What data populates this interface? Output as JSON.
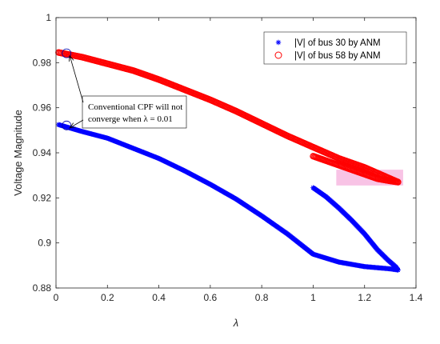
{
  "chart_data": {
    "type": "scatter",
    "xlabel": "λ",
    "ylabel": "Voltage Magnitude",
    "xlim": [
      0,
      1.4
    ],
    "ylim": [
      0.88,
      1.0
    ],
    "xticks": [
      "0",
      "0.2",
      "0.4",
      "0.6",
      "0.8",
      "1",
      "1.2",
      "1.4"
    ],
    "yticks": [
      "0.88",
      "0.9",
      "0.92",
      "0.94",
      "0.96",
      "0.98",
      "1"
    ],
    "legend_position": "top-right",
    "grid": false,
    "series": [
      {
        "name": "|V| of bus 30 by ANM",
        "marker": "asterisk",
        "color": "#0000ff",
        "segments": [
          [
            [
              0.01,
              0.9525
            ],
            [
              0.1,
              0.9495
            ],
            [
              0.2,
              0.9465
            ],
            [
              0.3,
              0.942
            ],
            [
              0.4,
              0.9375
            ],
            [
              0.5,
              0.932
            ],
            [
              0.6,
              0.926
            ],
            [
              0.7,
              0.9195
            ],
            [
              0.8,
              0.912
            ],
            [
              0.9,
              0.904
            ],
            [
              1.0,
              0.895
            ],
            [
              1.1,
              0.8915
            ],
            [
              1.2,
              0.8895
            ],
            [
              1.3,
              0.8885
            ],
            [
              1.33,
              0.888
            ]
          ],
          [
            [
              1.0,
              0.9245
            ],
            [
              1.05,
              0.9205
            ],
            [
              1.1,
              0.9155
            ],
            [
              1.15,
              0.91
            ],
            [
              1.2,
              0.904
            ],
            [
              1.25,
              0.897
            ],
            [
              1.29,
              0.8925
            ],
            [
              1.32,
              0.8895
            ],
            [
              1.33,
              0.888
            ]
          ]
        ]
      },
      {
        "name": "|V| of bus 58 by ANM",
        "marker": "circle",
        "color": "#ff0000",
        "segments": [
          [
            [
              0.01,
              0.9845
            ],
            [
              0.1,
              0.9825
            ],
            [
              0.2,
              0.9795
            ],
            [
              0.3,
              0.9765
            ],
            [
              0.4,
              0.9725
            ],
            [
              0.5,
              0.968
            ],
            [
              0.6,
              0.9635
            ],
            [
              0.7,
              0.9585
            ],
            [
              0.8,
              0.953
            ],
            [
              0.9,
              0.9475
            ],
            [
              1.0,
              0.9425
            ],
            [
              1.1,
              0.9375
            ],
            [
              1.2,
              0.9335
            ],
            [
              1.3,
              0.9285
            ],
            [
              1.33,
              0.927
            ]
          ],
          [
            [
              1.0,
              0.9385
            ],
            [
              1.05,
              0.9365
            ],
            [
              1.1,
              0.9345
            ],
            [
              1.15,
              0.9325
            ],
            [
              1.2,
              0.9305
            ],
            [
              1.25,
              0.9285
            ],
            [
              1.3,
              0.9275
            ],
            [
              1.33,
              0.927
            ]
          ]
        ]
      }
    ],
    "highlight": {
      "color": "#f7b8e0",
      "x_range": [
        1.09,
        1.35
      ],
      "y_range": [
        0.9255,
        0.9325
      ]
    },
    "annotation": {
      "lines": [
        "Conventional CPF will not",
        "converge when λ = 0.01"
      ],
      "points": [
        [
          0.01,
          0.9845
        ],
        [
          0.01,
          0.9525
        ]
      ]
    }
  }
}
